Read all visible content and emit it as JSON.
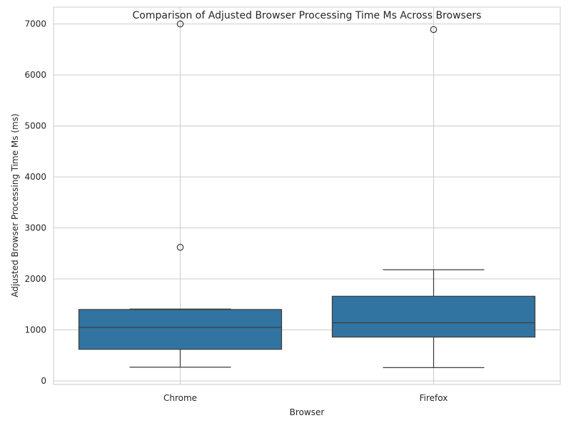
{
  "chart_data": {
    "type": "boxplot",
    "title": "Comparison of Adjusted Browser Processing Time Ms Across Browsers",
    "xlabel": "Browser",
    "ylabel": "Adjusted Browser Processing Time Ms (ms)",
    "ylim": [
      -70,
      7330
    ],
    "yticks": [
      0,
      1000,
      2000,
      3000,
      4000,
      5000,
      6000,
      7000
    ],
    "grid": true,
    "box_color": "#3274a1",
    "categories": [
      "Chrome",
      "Firefox"
    ],
    "boxes": [
      {
        "category": "Chrome",
        "whisker_low": 270,
        "q1": 620,
        "median": 1050,
        "q3": 1400,
        "whisker_high": 1410,
        "fliers": [
          2620,
          7000
        ]
      },
      {
        "category": "Firefox",
        "whisker_low": 260,
        "q1": 860,
        "median": 1140,
        "q3": 1660,
        "whisker_high": 2180,
        "fliers": [
          6890
        ]
      }
    ]
  }
}
